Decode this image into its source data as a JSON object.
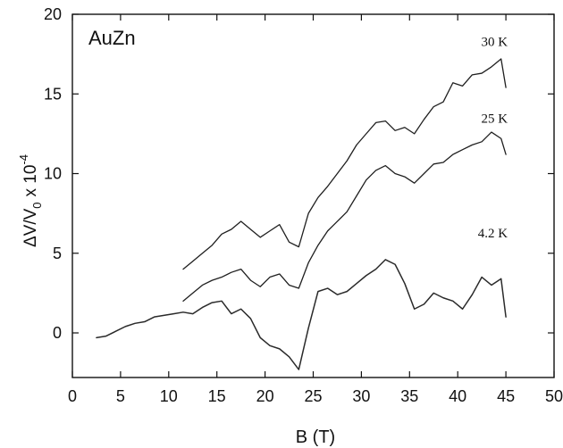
{
  "chart_data": {
    "type": "line",
    "title": "",
    "plot_label": "AuZn",
    "xlabel": "B (T)",
    "ylabel_main": "ΔV/V",
    "ylabel_subscript": "0",
    "ylabel_multiplier": "x 10",
    "ylabel_exponent": "-4",
    "xlim": [
      0,
      50
    ],
    "ylim": [
      -2.8,
      20
    ],
    "xticks": [
      0,
      5,
      10,
      15,
      20,
      25,
      30,
      35,
      40,
      45,
      50
    ],
    "yticks": [
      0,
      5,
      10,
      15,
      20
    ],
    "grid": false,
    "legend": "none",
    "series": [
      {
        "name": "30 K",
        "color": "#1f1f1f",
        "x": [
          11.5,
          12.5,
          13.5,
          14.5,
          15.5,
          16.5,
          17.5,
          18.5,
          19.5,
          20.5,
          21.5,
          22.5,
          23.5,
          24.5,
          25.5,
          26.5,
          27.5,
          28.5,
          29.5,
          30.5,
          31.5,
          32.5,
          33.5,
          34.5,
          35.5,
          36.5,
          37.5,
          38.5,
          39.5,
          40.5,
          41.5,
          42.5,
          43.5,
          44.5,
          45.0
        ],
        "y": [
          4.0,
          4.5,
          5.0,
          5.5,
          6.2,
          6.5,
          7.0,
          6.5,
          6.0,
          6.4,
          6.8,
          5.7,
          5.4,
          7.5,
          8.5,
          9.2,
          10.0,
          10.8,
          11.8,
          12.5,
          13.2,
          13.3,
          12.7,
          12.9,
          12.5,
          13.4,
          14.2,
          14.5,
          15.7,
          15.5,
          16.2,
          16.3,
          16.7,
          17.2,
          15.4
        ]
      },
      {
        "name": "25 K",
        "color": "#1f1f1f",
        "x": [
          11.5,
          12.5,
          13.5,
          14.5,
          15.5,
          16.5,
          17.5,
          18.5,
          19.5,
          20.5,
          21.5,
          22.5,
          23.5,
          24.5,
          25.5,
          26.5,
          27.5,
          28.5,
          29.5,
          30.5,
          31.5,
          32.5,
          33.5,
          34.5,
          35.5,
          36.5,
          37.5,
          38.5,
          39.5,
          40.5,
          41.5,
          42.5,
          43.5,
          44.5,
          45.0
        ],
        "y": [
          2.0,
          2.5,
          3.0,
          3.3,
          3.5,
          3.8,
          4.0,
          3.3,
          2.9,
          3.5,
          3.7,
          3.0,
          2.8,
          4.4,
          5.5,
          6.4,
          7.0,
          7.6,
          8.6,
          9.6,
          10.2,
          10.5,
          10.0,
          9.8,
          9.4,
          10.0,
          10.6,
          10.7,
          11.2,
          11.5,
          11.8,
          12.0,
          12.6,
          12.2,
          11.2
        ]
      },
      {
        "name": "4.2 K",
        "color": "#2a2a2a",
        "x": [
          2.5,
          3.5,
          4.5,
          5.5,
          6.5,
          7.5,
          8.5,
          9.5,
          10.5,
          11.5,
          12.5,
          13.5,
          14.5,
          15.5,
          16.5,
          17.5,
          18.5,
          19.5,
          20.5,
          21.5,
          22.5,
          23.5,
          24.5,
          25.5,
          26.5,
          27.5,
          28.5,
          29.5,
          30.5,
          31.5,
          32.5,
          33.5,
          34.5,
          35.5,
          36.5,
          37.5,
          38.5,
          39.5,
          40.5,
          41.5,
          42.5,
          43.5,
          44.5,
          45.0
        ],
        "y": [
          -0.3,
          -0.2,
          0.1,
          0.4,
          0.6,
          0.7,
          1.0,
          1.1,
          1.2,
          1.3,
          1.2,
          1.6,
          1.9,
          2.0,
          1.2,
          1.5,
          0.9,
          -0.3,
          -0.8,
          -1.0,
          -1.5,
          -2.3,
          0.3,
          2.6,
          2.8,
          2.4,
          2.6,
          3.1,
          3.6,
          4.0,
          4.6,
          4.3,
          3.1,
          1.5,
          1.8,
          2.5,
          2.2,
          2.0,
          1.5,
          2.4,
          3.5,
          3.0,
          3.4,
          1.0
        ]
      }
    ]
  }
}
